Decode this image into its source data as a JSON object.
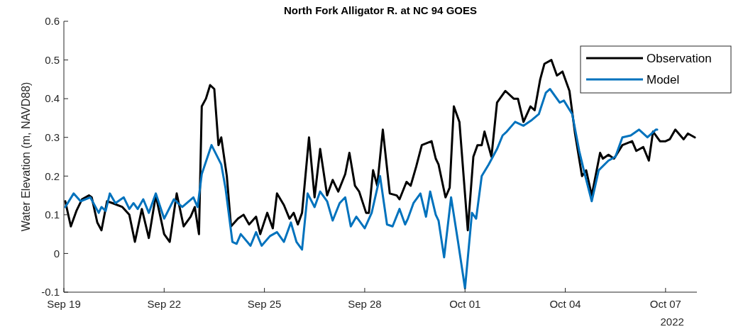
{
  "chart_data": {
    "type": "line",
    "title": "North Fork Alligator R. at NC 94 GOES",
    "ylabel": "Water Elevation (m, NAVD88)",
    "xlim": [
      "2022-09-19T00:00",
      "2022-10-07T22:30"
    ],
    "xticks": [
      {
        "value": "2022-09-19",
        "label": "Sep 19"
      },
      {
        "value": "2022-09-22",
        "label": "Sep 22"
      },
      {
        "value": "2022-09-25",
        "label": "Sep 25"
      },
      {
        "value": "2022-09-28",
        "label": "Sep 28"
      },
      {
        "value": "2022-10-01",
        "label": "Oct 01"
      },
      {
        "value": "2022-10-04",
        "label": "Oct 04"
      },
      {
        "value": "2022-10-07",
        "label": "Oct 07"
      }
    ],
    "ylim": [
      -0.1,
      0.6
    ],
    "yticks": [
      -0.1,
      0,
      0.1,
      0.2,
      0.3,
      0.4,
      0.5,
      0.6
    ],
    "annotations": [
      "2022"
    ],
    "grid": false,
    "legend": "top right",
    "marker": "none",
    "line_style": "solid",
    "series": [
      {
        "name": "Observation",
        "color": "#000000",
        "x": [
          "2022-09-19T01:00",
          "2022-09-19T05:00",
          "2022-09-19T09:00",
          "2022-09-19T13:00",
          "2022-09-19T18:00",
          "2022-09-19T20:00",
          "2022-09-20T00:00",
          "2022-09-20T03:00",
          "2022-09-20T07:00",
          "2022-09-20T11:00",
          "2022-09-20T18:00",
          "2022-09-20T23:00",
          "2022-09-21T03:00",
          "2022-09-21T08:00",
          "2022-09-21T13:00",
          "2022-09-21T18:00",
          "2022-09-22T00:00",
          "2022-09-22T04:00",
          "2022-09-22T09:00",
          "2022-09-22T14:00",
          "2022-09-22T19:00",
          "2022-09-22T22:00",
          "2022-09-23T01:00",
          "2022-09-23T03:00",
          "2022-09-23T06:00",
          "2022-09-23T09:00",
          "2022-09-23T12:00",
          "2022-09-23T15:00",
          "2022-09-23T17:00",
          "2022-09-23T21:00",
          "2022-09-24T00:00",
          "2022-09-24T05:00",
          "2022-09-24T09:00",
          "2022-09-24T13:00",
          "2022-09-24T18:00",
          "2022-09-24T21:00",
          "2022-09-25T02:00",
          "2022-09-25T06:00",
          "2022-09-25T09:00",
          "2022-09-25T14:00",
          "2022-09-25T18:00",
          "2022-09-25T21:00",
          "2022-09-26T00:00",
          "2022-09-26T03:00",
          "2022-09-26T08:00",
          "2022-09-26T12:00",
          "2022-09-26T16:00",
          "2022-09-26T21:00",
          "2022-09-27T01:00",
          "2022-09-27T05:00",
          "2022-09-27T10:00",
          "2022-09-27T13:00",
          "2022-09-27T17:00",
          "2022-09-27T20:00",
          "2022-09-28T01:00",
          "2022-09-28T03:00",
          "2022-09-28T06:00",
          "2022-09-28T09:00",
          "2022-09-28T13:00",
          "2022-09-28T18:00",
          "2022-09-28T23:00",
          "2022-09-29T01:00",
          "2022-09-29T06:00",
          "2022-09-29T09:00",
          "2022-09-29T13:00",
          "2022-09-29T17:00",
          "2022-09-30T00:00",
          "2022-09-30T03:00",
          "2022-09-30T05:00",
          "2022-09-30T10:00",
          "2022-09-30T13:00",
          "2022-09-30T16:00",
          "2022-09-30T20:00",
          "2022-10-01T02:00",
          "2022-10-01T06:00",
          "2022-10-01T09:00",
          "2022-10-01T12:00",
          "2022-10-01T14:00",
          "2022-10-01T19:00",
          "2022-10-01T23:00",
          "2022-10-02T05:00",
          "2022-10-02T11:00",
          "2022-10-02T14:00",
          "2022-10-02T18:00",
          "2022-10-02T23:00",
          "2022-10-03T02:00",
          "2022-10-03T06:00",
          "2022-10-03T09:00",
          "2022-10-03T14:00",
          "2022-10-03T18:00",
          "2022-10-03T22:00",
          "2022-10-04T03:00",
          "2022-10-04T07:00",
          "2022-10-04T12:00",
          "2022-10-04T15:00",
          "2022-10-04T19:00",
          "2022-10-05T01:00",
          "2022-10-05T03:00",
          "2022-10-05T07:00",
          "2022-10-05T11:00",
          "2022-10-05T17:00",
          "2022-10-06T00:00",
          "2022-10-06T03:00",
          "2022-10-06T08:00",
          "2022-10-06T12:00",
          "2022-10-06T15:00",
          "2022-10-06T20:00",
          "2022-10-07T00:00",
          "2022-10-07T03:00",
          "2022-10-07T07:00",
          "2022-10-07T13:00",
          "2022-10-07T16:00",
          "2022-10-07T21:00"
        ],
        "values": [
          0.135,
          0.07,
          0.11,
          0.14,
          0.15,
          0.145,
          0.08,
          0.06,
          0.135,
          0.13,
          0.12,
          0.1,
          0.03,
          0.115,
          0.04,
          0.15,
          0.05,
          0.03,
          0.155,
          0.07,
          0.095,
          0.12,
          0.05,
          0.38,
          0.4,
          0.435,
          0.425,
          0.28,
          0.3,
          0.2,
          0.07,
          0.09,
          0.1,
          0.075,
          0.095,
          0.05,
          0.105,
          0.065,
          0.155,
          0.125,
          0.09,
          0.105,
          0.075,
          0.105,
          0.3,
          0.145,
          0.27,
          0.15,
          0.19,
          0.16,
          0.205,
          0.26,
          0.175,
          0.16,
          0.105,
          0.105,
          0.215,
          0.175,
          0.32,
          0.155,
          0.15,
          0.14,
          0.185,
          0.175,
          0.225,
          0.28,
          0.29,
          0.245,
          0.23,
          0.145,
          0.17,
          0.38,
          0.34,
          0.06,
          0.25,
          0.28,
          0.28,
          0.315,
          0.25,
          0.39,
          0.42,
          0.4,
          0.4,
          0.34,
          0.38,
          0.37,
          0.45,
          0.49,
          0.5,
          0.46,
          0.47,
          0.42,
          0.31,
          0.2,
          0.215,
          0.15,
          0.26,
          0.245,
          0.255,
          0.245,
          0.28,
          0.29,
          0.265,
          0.275,
          0.24,
          0.315,
          0.29,
          0.29,
          0.295,
          0.32,
          0.295,
          0.31,
          0.3
        ]
      },
      {
        "name": "Model",
        "color": "#0072bd",
        "x": [
          "2022-09-19T01:00",
          "2022-09-19T07:00",
          "2022-09-19T12:00",
          "2022-09-19T19:00",
          "2022-09-20T01:00",
          "2022-09-20T03:00",
          "2022-09-20T06:00",
          "2022-09-20T09:00",
          "2022-09-20T13:00",
          "2022-09-20T19:00",
          "2022-09-20T23:00",
          "2022-09-21T02:00",
          "2022-09-21T05:00",
          "2022-09-21T09:00",
          "2022-09-21T13:00",
          "2022-09-21T18:00",
          "2022-09-22T00:00",
          "2022-09-22T07:00",
          "2022-09-22T13:00",
          "2022-09-22T21:00",
          "2022-09-23T00:00",
          "2022-09-23T03:00",
          "2022-09-23T10:00",
          "2022-09-23T17:00",
          "2022-09-23T20:00",
          "2022-09-24T01:00",
          "2022-09-24T04:00",
          "2022-09-24T07:00",
          "2022-09-24T14:00",
          "2022-09-24T18:00",
          "2022-09-24T22:00",
          "2022-09-25T04:00",
          "2022-09-25T09:00",
          "2022-09-25T14:00",
          "2022-09-25T19:00",
          "2022-09-25T23:00",
          "2022-09-26T03:00",
          "2022-09-26T07:00",
          "2022-09-26T12:00",
          "2022-09-26T16:00",
          "2022-09-26T21:00",
          "2022-09-27T01:00",
          "2022-09-27T06:00",
          "2022-09-27T10:00",
          "2022-09-27T14:00",
          "2022-09-27T18:00",
          "2022-09-28T00:00",
          "2022-09-28T05:00",
          "2022-09-28T11:00",
          "2022-09-28T16:00",
          "2022-09-28T20:00",
          "2022-09-29T01:00",
          "2022-09-29T05:00",
          "2022-09-29T07:00",
          "2022-09-29T11:00",
          "2022-09-29T16:00",
          "2022-09-29T20:00",
          "2022-09-29T23:00",
          "2022-09-30T03:00",
          "2022-09-30T05:00",
          "2022-09-30T09:00",
          "2022-09-30T14:00",
          "2022-09-30T19:00",
          "2022-10-01T00:00",
          "2022-10-01T05:00",
          "2022-10-01T08:00",
          "2022-10-01T12:00",
          "2022-10-01T17:00",
          "2022-10-01T23:00",
          "2022-10-02T03:00",
          "2022-10-02T06:00",
          "2022-10-02T12:00",
          "2022-10-02T18:00",
          "2022-10-03T00:00",
          "2022-10-03T05:00",
          "2022-10-03T10:00",
          "2022-10-03T13:00",
          "2022-10-03T20:00",
          "2022-10-03T23:00",
          "2022-10-04T05:00",
          "2022-10-04T10:00",
          "2022-10-04T14:00",
          "2022-10-04T19:00",
          "2022-10-05T00:00",
          "2022-10-05T07:00",
          "2022-10-05T12:00",
          "2022-10-05T17:00",
          "2022-10-05T23:00",
          "2022-10-06T05:00",
          "2022-10-06T11:00",
          "2022-10-06T17:00",
          "2022-10-06T18:00"
        ],
        "values": [
          0.12,
          0.155,
          0.135,
          0.145,
          0.105,
          0.12,
          0.11,
          0.155,
          0.13,
          0.145,
          0.115,
          0.13,
          0.115,
          0.14,
          0.105,
          0.155,
          0.09,
          0.14,
          0.12,
          0.145,
          0.12,
          0.205,
          0.28,
          0.23,
          0.17,
          0.03,
          0.025,
          0.05,
          0.02,
          0.055,
          0.02,
          0.045,
          0.055,
          0.03,
          0.08,
          0.03,
          0.01,
          0.155,
          0.12,
          0.16,
          0.135,
          0.085,
          0.13,
          0.145,
          0.07,
          0.095,
          0.065,
          0.105,
          0.2,
          0.075,
          0.07,
          0.115,
          0.075,
          0.09,
          0.13,
          0.155,
          0.095,
          0.16,
          0.1,
          0.085,
          -0.01,
          0.145,
          0.03,
          -0.09,
          0.105,
          0.09,
          0.2,
          0.23,
          0.27,
          0.305,
          0.315,
          0.34,
          0.33,
          0.345,
          0.36,
          0.415,
          0.425,
          0.39,
          0.395,
          0.36,
          0.265,
          0.205,
          0.135,
          0.215,
          0.24,
          0.25,
          0.3,
          0.305,
          0.32,
          0.3,
          0.32,
          0.32
        ]
      }
    ]
  }
}
